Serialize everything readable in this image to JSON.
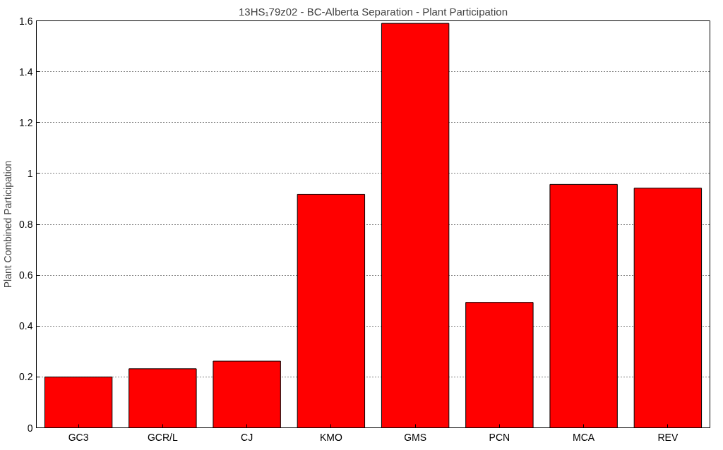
{
  "chart_data": {
    "type": "bar",
    "title": "13HS₁79z02 - BC-Alberta Separation - Plant Participation",
    "ylabel": "Plant Combined Participation",
    "categories": [
      "GC3",
      "GCR/L",
      "CJ",
      "KMO",
      "GMS",
      "PCN",
      "MCA",
      "REV"
    ],
    "values": [
      0.2,
      0.232,
      0.262,
      0.918,
      1.59,
      0.493,
      0.957,
      0.942
    ],
    "color": "#ff0000",
    "ylim": [
      0,
      1.6
    ],
    "yticks": [
      0,
      0.2,
      0.4,
      0.6,
      0.8,
      1,
      1.2,
      1.4,
      1.6
    ],
    "grid": "y"
  }
}
